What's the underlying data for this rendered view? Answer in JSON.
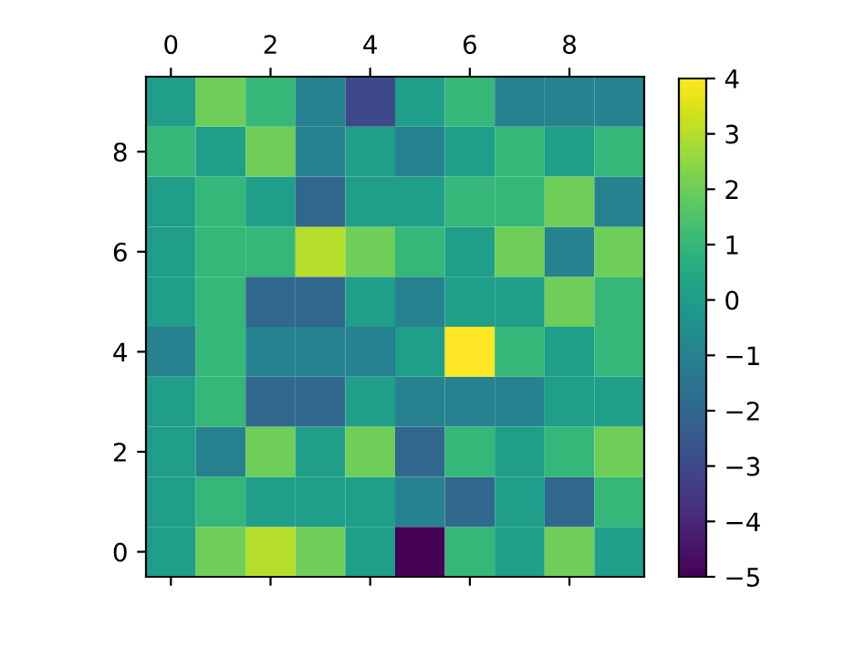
{
  "chart_data": {
    "type": "heatmap",
    "categories": [
      "0",
      null,
      "2",
      null,
      "4",
      null,
      "6",
      null,
      "8",
      null
    ],
    "y_categories": [
      null,
      "8",
      null,
      "6",
      null,
      "4",
      null,
      "2",
      null,
      "0"
    ],
    "cells": [
      [
        0,
        2,
        1,
        -1,
        -3,
        0,
        1,
        -1,
        -1,
        -1
      ],
      [
        1,
        0,
        2,
        -1,
        0,
        -1,
        0,
        1,
        0,
        1
      ],
      [
        0,
        1,
        0,
        -2,
        0,
        0,
        1,
        1,
        2,
        -1
      ],
      [
        0,
        1,
        1,
        3,
        2,
        1,
        0,
        2,
        -1,
        2
      ],
      [
        0,
        1,
        -2,
        -2,
        0,
        -1,
        0,
        0,
        2,
        1
      ],
      [
        -1,
        1,
        -1,
        -1,
        -1,
        0,
        4,
        1,
        0,
        1
      ],
      [
        0,
        1,
        -2,
        -2,
        0,
        -1,
        -1,
        -1,
        0,
        0
      ],
      [
        0,
        -1,
        2,
        0,
        2,
        -2,
        1,
        0,
        1,
        2
      ],
      [
        0,
        1,
        0,
        0,
        0,
        -1,
        -2,
        0,
        -2,
        1
      ],
      [
        0,
        2,
        3,
        2,
        0,
        -5,
        1,
        0,
        2,
        0
      ]
    ],
    "clim": [
      -5,
      4
    ],
    "cticks": [
      -5,
      -4,
      -3,
      -2,
      -1,
      0,
      1,
      2,
      3,
      4
    ]
  }
}
